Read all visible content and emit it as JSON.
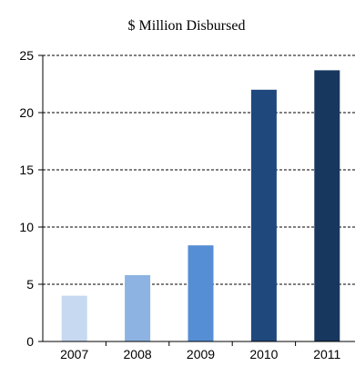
{
  "chart_data": {
    "type": "bar",
    "title": "$ Million Disbursed",
    "categories": [
      "2007",
      "2008",
      "2009",
      "2010",
      "2011"
    ],
    "values": [
      4.0,
      5.8,
      8.4,
      22.0,
      23.7
    ],
    "ylim": [
      0,
      25
    ],
    "yticks": [
      "0",
      "5",
      "10",
      "15",
      "20",
      "25"
    ],
    "grid": true,
    "colors": [
      "#c6d9f1",
      "#8db3e2",
      "#558ed5",
      "#1f497d",
      "#17375e"
    ]
  }
}
